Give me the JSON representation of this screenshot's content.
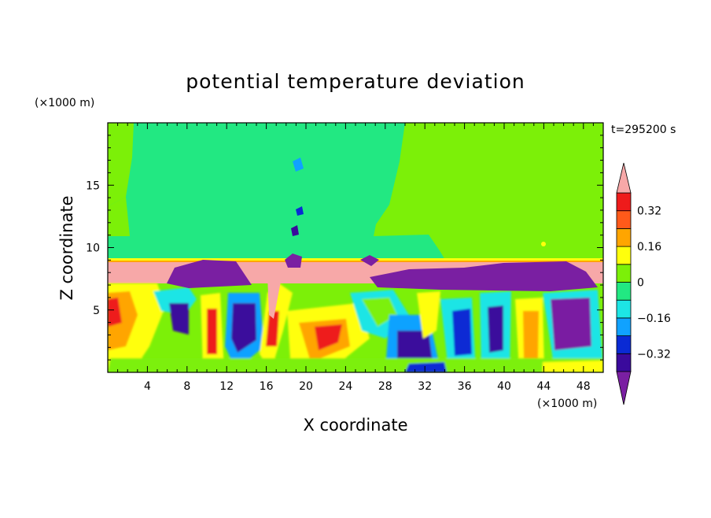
{
  "chart_data": {
    "type": "heatmap",
    "title": "potential temperature deviation",
    "xlabel": "X coordinate",
    "ylabel": "Z coordinate",
    "x_unit": "(×1000 m)",
    "y_unit": "(×1000 m)",
    "time_label": "t=295200 s",
    "xlim": [
      0,
      50
    ],
    "ylim": [
      0,
      20
    ],
    "x_ticks": [
      4,
      8,
      12,
      16,
      20,
      24,
      28,
      32,
      36,
      40,
      44,
      48
    ],
    "y_ticks": [
      5,
      10,
      15
    ],
    "grid": false,
    "colorbar": {
      "placement": "right",
      "levels": [
        -0.4,
        -0.32,
        -0.24,
        -0.16,
        -0.08,
        0,
        0.08,
        0.16,
        0.24,
        0.32,
        0.4
      ],
      "colors": [
        "#7a1fa2",
        "#3a0a9c",
        "#0a2ad4",
        "#10a2ff",
        "#1de5e5",
        "#22e882",
        "#7cf008",
        "#ffff0c",
        "#ffa500",
        "#ff5a1a",
        "#ee1b1b",
        "#f7a8a8"
      ],
      "labels": [
        "0.32",
        "0.16",
        "0",
        "−0.16",
        "−0.32"
      ],
      "label_values": [
        0.32,
        0.16,
        0,
        -0.16,
        -0.32
      ],
      "extend": "both"
    }
  }
}
